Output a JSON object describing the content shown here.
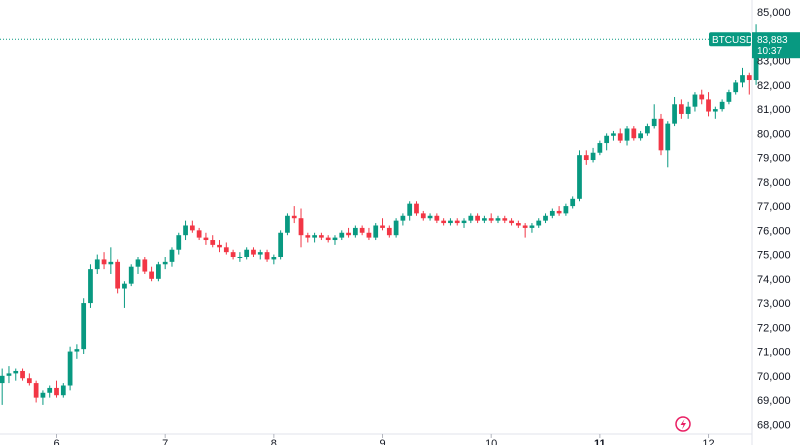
{
  "chart_data": {
    "type": "candlestick",
    "symbol": "BTCUSD",
    "last_price_label": "83,883",
    "countdown_label": "10:37",
    "last_price": 83883,
    "colors": {
      "up": "#089981",
      "down": "#f23645",
      "price_line": "#089981",
      "flash_icon": "#e91e63"
    },
    "ylim": [
      67600,
      85500
    ],
    "y_ticks": [
      68000,
      69000,
      70000,
      71000,
      72000,
      73000,
      74000,
      75000,
      76000,
      77000,
      78000,
      79000,
      80000,
      81000,
      82000,
      83000,
      84000,
      85000
    ],
    "y_tick_labels": [
      "68,000",
      "69,000",
      "70,000",
      "71,000",
      "72,000",
      "73,000",
      "74,000",
      "75,000",
      "76,000",
      "77,000",
      "78,000",
      "79,000",
      "80,000",
      "81,000",
      "82,000",
      "83,000",
      "84,000",
      "85,000"
    ],
    "x_ticks": [
      {
        "label": "6",
        "t": 1.0,
        "bold": false
      },
      {
        "label": "7",
        "t": 2.0,
        "bold": false
      },
      {
        "label": "8",
        "t": 3.0,
        "bold": false
      },
      {
        "label": "9",
        "t": 4.0,
        "bold": false
      },
      {
        "label": "10",
        "t": 5.0,
        "bold": false
      },
      {
        "label": "11",
        "t": 6.0,
        "bold": true
      },
      {
        "label": "12",
        "t": 7.0,
        "bold": false
      }
    ],
    "xlim": [
      0.48,
      7.4
    ],
    "grid": false,
    "candle_interval": 0.0625,
    "candles_start": 0.5,
    "candles": [
      [
        69700,
        70300,
        68800,
        70000
      ],
      [
        70000,
        70400,
        69700,
        70100
      ],
      [
        70100,
        70300,
        69800,
        70200
      ],
      [
        70200,
        70300,
        69800,
        69900
      ],
      [
        69900,
        70100,
        69600,
        69700
      ],
      [
        69700,
        69800,
        68900,
        69100
      ],
      [
        69100,
        69400,
        68800,
        69300
      ],
      [
        69300,
        69600,
        69100,
        69500
      ],
      [
        69500,
        69800,
        69100,
        69200
      ],
      [
        69200,
        69700,
        69100,
        69600
      ],
      [
        69600,
        71200,
        69400,
        71000
      ],
      [
        71000,
        71300,
        70700,
        71100
      ],
      [
        71100,
        73200,
        70900,
        73000
      ],
      [
        73000,
        74600,
        72800,
        74400
      ],
      [
        74400,
        75000,
        74200,
        74800
      ],
      [
        74800,
        75100,
        74400,
        74600
      ],
      [
        74600,
        75300,
        74200,
        74700
      ],
      [
        74700,
        74800,
        73400,
        73600
      ],
      [
        73600,
        73900,
        72800,
        73800
      ],
      [
        73800,
        74600,
        73700,
        74500
      ],
      [
        74500,
        74900,
        74200,
        74800
      ],
      [
        74800,
        74900,
        74200,
        74300
      ],
      [
        74300,
        74500,
        73900,
        74000
      ],
      [
        74000,
        74700,
        73900,
        74600
      ],
      [
        74600,
        74900,
        74400,
        74700
      ],
      [
        74700,
        75300,
        74500,
        75200
      ],
      [
        75200,
        75900,
        75000,
        75800
      ],
      [
        75800,
        76400,
        75600,
        76200
      ],
      [
        76200,
        76400,
        75900,
        76000
      ],
      [
        76000,
        76100,
        75600,
        75700
      ],
      [
        75700,
        75900,
        75400,
        75600
      ],
      [
        75600,
        75800,
        75300,
        75400
      ],
      [
        75400,
        75600,
        75100,
        75300
      ],
      [
        75300,
        75500,
        75000,
        75100
      ],
      [
        75100,
        75200,
        74800,
        74900
      ],
      [
        74900,
        75100,
        74700,
        74900
      ],
      [
        74900,
        75300,
        74800,
        75200
      ],
      [
        75200,
        75300,
        74900,
        75000
      ],
      [
        75000,
        75200,
        74800,
        75100
      ],
      [
        75100,
        75200,
        74700,
        74800
      ],
      [
        74800,
        75000,
        74600,
        74900
      ],
      [
        74900,
        76000,
        74800,
        75900
      ],
      [
        75900,
        76700,
        75800,
        76600
      ],
      [
        76600,
        77000,
        76300,
        76500
      ],
      [
        76500,
        76900,
        75300,
        75800
      ],
      [
        75800,
        75900,
        75500,
        75700
      ],
      [
        75700,
        75900,
        75500,
        75800
      ],
      [
        75800,
        75900,
        75600,
        75700
      ],
      [
        75700,
        75800,
        75500,
        75600
      ],
      [
        75600,
        75800,
        75400,
        75700
      ],
      [
        75700,
        76000,
        75600,
        75900
      ],
      [
        75900,
        76100,
        75700,
        75800
      ],
      [
        75800,
        76200,
        75700,
        76100
      ],
      [
        76100,
        76200,
        75800,
        75900
      ],
      [
        75900,
        76100,
        75600,
        75700
      ],
      [
        75700,
        76300,
        75600,
        76200
      ],
      [
        76200,
        76500,
        76000,
        76100
      ],
      [
        76100,
        76200,
        75700,
        75800
      ],
      [
        75800,
        76500,
        75700,
        76400
      ],
      [
        76400,
        76700,
        76200,
        76600
      ],
      [
        76600,
        77200,
        76400,
        77100
      ],
      [
        77100,
        77200,
        76600,
        76700
      ],
      [
        76700,
        76800,
        76400,
        76500
      ],
      [
        76500,
        76700,
        76400,
        76600
      ],
      [
        76600,
        76700,
        76300,
        76400
      ],
      [
        76400,
        76500,
        76200,
        76300
      ],
      [
        76300,
        76500,
        76200,
        76400
      ],
      [
        76400,
        76500,
        76200,
        76300
      ],
      [
        76300,
        76500,
        76100,
        76400
      ],
      [
        76400,
        76700,
        76300,
        76600
      ],
      [
        76600,
        76700,
        76300,
        76400
      ],
      [
        76400,
        76600,
        76300,
        76500
      ],
      [
        76500,
        76700,
        76300,
        76400
      ],
      [
        76400,
        76600,
        76300,
        76500
      ],
      [
        76500,
        76600,
        76300,
        76400
      ],
      [
        76400,
        76500,
        76200,
        76300
      ],
      [
        76300,
        76400,
        76100,
        76200
      ],
      [
        76200,
        76300,
        75700,
        76100
      ],
      [
        76100,
        76300,
        75900,
        76200
      ],
      [
        76200,
        76500,
        76100,
        76400
      ],
      [
        76400,
        76700,
        76300,
        76600
      ],
      [
        76600,
        76900,
        76500,
        76800
      ],
      [
        76800,
        77000,
        76600,
        76700
      ],
      [
        76700,
        77100,
        76600,
        77000
      ],
      [
        77000,
        77400,
        76900,
        77300
      ],
      [
        77300,
        79300,
        77200,
        79100
      ],
      [
        79100,
        79300,
        78700,
        78900
      ],
      [
        78900,
        79400,
        78800,
        79200
      ],
      [
        79200,
        79700,
        79100,
        79600
      ],
      [
        79600,
        80000,
        79300,
        79900
      ],
      [
        79900,
        80100,
        79700,
        80000
      ],
      [
        80000,
        80200,
        79600,
        79700
      ],
      [
        79700,
        80300,
        79500,
        80200
      ],
      [
        80200,
        80300,
        79700,
        79800
      ],
      [
        79800,
        80100,
        79700,
        80000
      ],
      [
        80000,
        80400,
        79900,
        80300
      ],
      [
        80300,
        81200,
        80200,
        80600
      ],
      [
        80600,
        80800,
        79100,
        79300
      ],
      [
        79300,
        80500,
        78600,
        80400
      ],
      [
        80400,
        81500,
        80300,
        81200
      ],
      [
        81200,
        81400,
        80600,
        80800
      ],
      [
        80800,
        81300,
        80600,
        81100
      ],
      [
        81100,
        81700,
        80900,
        81600
      ],
      [
        81600,
        81800,
        81200,
        81400
      ],
      [
        81400,
        81700,
        80700,
        80900
      ],
      [
        80900,
        81100,
        80600,
        81000
      ],
      [
        81000,
        81400,
        80900,
        81300
      ],
      [
        81300,
        81800,
        81200,
        81700
      ],
      [
        81700,
        82200,
        81600,
        82100
      ],
      [
        82100,
        82700,
        81900,
        82400
      ],
      [
        82400,
        82500,
        81600,
        82200
      ],
      [
        82200,
        84500,
        82000,
        83900
      ]
    ]
  }
}
